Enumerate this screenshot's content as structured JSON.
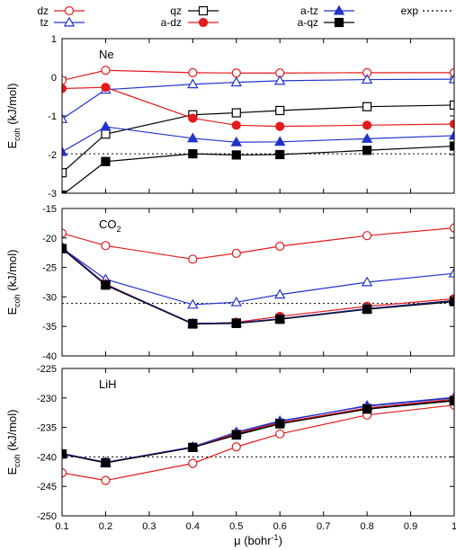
{
  "legend": {
    "placement": "top",
    "items": [
      {
        "label": "dz",
        "color": "#e41a1c",
        "marker": "open-circle",
        "line": "solid"
      },
      {
        "label": "tz",
        "color": "#2233cc",
        "marker": "open-triangle",
        "line": "solid"
      },
      {
        "label": "qz",
        "color": "#000000",
        "marker": "open-square",
        "line": "solid"
      },
      {
        "label": "a-dz",
        "color": "#e41a1c",
        "marker": "filled-circle",
        "line": "solid"
      },
      {
        "label": "a-tz",
        "color": "#2233cc",
        "marker": "filled-triangle",
        "line": "solid"
      },
      {
        "label": "a-qz",
        "color": "#000000",
        "marker": "filled-square",
        "line": "solid"
      },
      {
        "label": "exp",
        "color": "#000000",
        "marker": "none",
        "line": "dotted"
      }
    ]
  },
  "xlabel_text": "μ (bohr",
  "xlabel_sup": "-1",
  "xlabel_close": ")",
  "ylabel_prefix": "E",
  "ylabel_sub": "coh",
  "ylabel_suffix": " (kJ/mol)",
  "chart_data": [
    {
      "type": "line",
      "panel_label": "Ne",
      "x": [
        0.1,
        0.2,
        0.4,
        0.5,
        0.6,
        0.8,
        1.0
      ],
      "xlim": [
        0.1,
        1.0
      ],
      "ylim": [
        -3,
        1
      ],
      "xticks": [
        0.1,
        0.2,
        0.3,
        0.4,
        0.5,
        0.6,
        0.7,
        0.8,
        0.9,
        1.0
      ],
      "yticks": [
        -3,
        -2,
        -1,
        0,
        1
      ],
      "exp_value": -1.98,
      "series": [
        {
          "name": "dz",
          "values": [
            -0.08,
            0.18,
            0.12,
            0.11,
            0.11,
            0.12,
            0.12
          ]
        },
        {
          "name": "tz",
          "values": [
            -1.08,
            -0.32,
            -0.18,
            -0.13,
            -0.09,
            -0.06,
            -0.05
          ]
        },
        {
          "name": "qz",
          "values": [
            -2.47,
            -1.47,
            -0.97,
            -0.92,
            -0.86,
            -0.76,
            -0.72
          ]
        },
        {
          "name": "a-dz",
          "values": [
            -0.29,
            -0.26,
            -1.06,
            -1.24,
            -1.27,
            -1.24,
            -1.21
          ]
        },
        {
          "name": "a-tz",
          "values": [
            -1.93,
            -1.28,
            -1.58,
            -1.68,
            -1.67,
            -1.59,
            -1.51
          ]
        },
        {
          "name": "a-qz",
          "values": [
            -3.05,
            -2.18,
            -1.98,
            -2.01,
            -2.0,
            -1.89,
            -1.78
          ]
        }
      ]
    },
    {
      "type": "line",
      "panel_label": "CO",
      "panel_label_sub": "2",
      "x": [
        0.1,
        0.2,
        0.4,
        0.5,
        0.6,
        0.8,
        1.0
      ],
      "xlim": [
        0.1,
        1.0
      ],
      "ylim": [
        -40,
        -15
      ],
      "xticks": [
        0.1,
        0.2,
        0.3,
        0.4,
        0.5,
        0.6,
        0.7,
        0.8,
        0.9,
        1.0
      ],
      "yticks": [
        -40,
        -35,
        -30,
        -25,
        -20,
        -15
      ],
      "exp_value": -31.1,
      "series": [
        {
          "name": "dz",
          "values": [
            -19.2,
            -21.3,
            -23.6,
            -22.6,
            -21.4,
            -19.6,
            -18.3
          ]
        },
        {
          "name": "tz",
          "values": [
            -21.7,
            -27.0,
            -31.3,
            -30.9,
            -29.6,
            -27.5,
            -26.0
          ]
        },
        {
          "name": "qz",
          "values": [
            -21.8,
            -27.9,
            -34.5,
            -34.4,
            -33.7,
            -32.0,
            -30.6
          ]
        },
        {
          "name": "a-dz",
          "values": [
            -21.6,
            -27.8,
            -34.6,
            -34.3,
            -33.3,
            -31.6,
            -30.3
          ]
        },
        {
          "name": "a-tz",
          "values": [
            -21.6,
            -27.9,
            -34.5,
            -34.4,
            -33.7,
            -32.0,
            -30.7
          ]
        },
        {
          "name": "a-qz",
          "values": [
            -21.8,
            -28.0,
            -34.6,
            -34.5,
            -33.8,
            -32.1,
            -30.8
          ]
        }
      ]
    },
    {
      "type": "line",
      "panel_label": "LiH",
      "x": [
        0.1,
        0.2,
        0.4,
        0.5,
        0.6,
        0.8,
        1.0
      ],
      "xlim": [
        0.1,
        1.0
      ],
      "ylim": [
        -250,
        -225
      ],
      "xticks": [
        0.1,
        0.2,
        0.3,
        0.4,
        0.5,
        0.6,
        0.7,
        0.8,
        0.9,
        1.0
      ],
      "yticks": [
        -250,
        -245,
        -240,
        -235,
        -230,
        -225
      ],
      "exp_value": -240.0,
      "series": [
        {
          "name": "dz",
          "values": [
            -242.7,
            -244.0,
            -241.1,
            -238.3,
            -236.1,
            -232.9,
            -231.2
          ]
        },
        {
          "name": "tz",
          "values": [
            -239.5,
            -241.0,
            -238.4,
            -235.9,
            -234.0,
            -231.3,
            -229.9
          ]
        },
        {
          "name": "qz",
          "values": [
            -239.5,
            -241.0,
            -238.4,
            -236.2,
            -234.3,
            -231.8,
            -230.4
          ]
        },
        {
          "name": "a-dz",
          "values": [
            -239.5,
            -241.0,
            -238.4,
            -236.0,
            -234.2,
            -231.7,
            -230.2
          ]
        },
        {
          "name": "a-tz",
          "values": [
            -239.4,
            -240.9,
            -238.3,
            -235.8,
            -233.9,
            -231.4,
            -230.0
          ]
        },
        {
          "name": "a-qz",
          "values": [
            -239.5,
            -241.0,
            -238.4,
            -236.3,
            -234.4,
            -231.9,
            -230.5
          ]
        }
      ]
    }
  ]
}
